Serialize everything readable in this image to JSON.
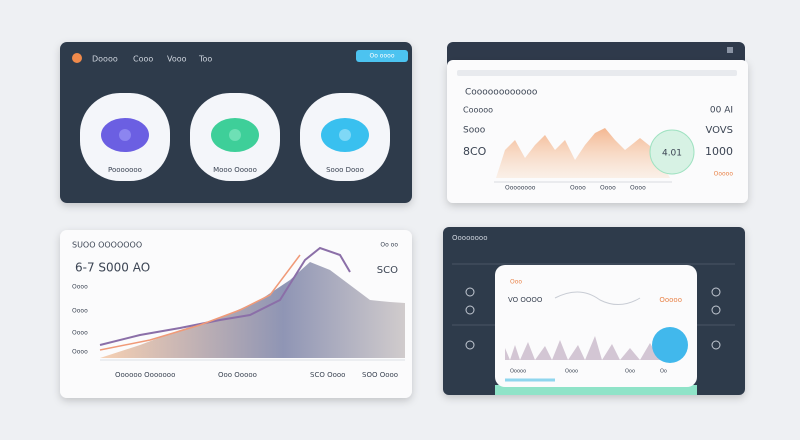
{
  "panels": [
    {
      "nav": [
        "Doooo",
        "Cooo",
        "Vooo",
        "Too"
      ],
      "button": "Oo oooo",
      "cards": [
        "Pooooooo",
        "Mooo Ooooo",
        "Sooo Dooo"
      ]
    },
    {
      "title": "Coooooooooooo",
      "left": [
        "Cooooo",
        "Sooo",
        "8CO"
      ],
      "right": [
        "00 AI",
        "VOVS",
        "1000"
      ],
      "badge": "4.01",
      "footer": [
        "Oooooooo",
        "Oooo",
        "Oooo",
        "Oooo"
      ],
      "footer_right": "Ooooo"
    },
    {
      "title": "SUOO OOOOOOO",
      "headline": "6-7 S000 AO",
      "right_label": "Oo oo",
      "right_value": "SCO",
      "left_labels": [
        "Oooo",
        "Oooo",
        "Oooo",
        "Oooo"
      ],
      "footer": [
        "Oooooo Ooooooo",
        "Ooo Ooooo",
        "SCO Oooo",
        "SOO Oooo"
      ]
    },
    {
      "header": "Oooooooo",
      "card_title": "Ooo",
      "card_label": "VO OOOO",
      "card_value": "Ooooo",
      "footer": [
        "Ooooo",
        "Oooo",
        "Ooo",
        "Oo"
      ]
    }
  ]
}
